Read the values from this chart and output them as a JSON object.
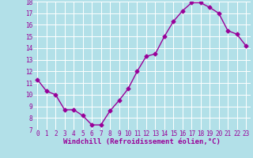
{
  "x": [
    0,
    1,
    2,
    3,
    4,
    5,
    6,
    7,
    8,
    9,
    10,
    11,
    12,
    13,
    14,
    15,
    16,
    17,
    18,
    19,
    20,
    21,
    22,
    23
  ],
  "y": [
    11.3,
    10.3,
    10.0,
    8.7,
    8.7,
    8.2,
    7.4,
    7.4,
    8.6,
    9.5,
    10.5,
    12.0,
    13.3,
    13.5,
    15.0,
    16.3,
    17.2,
    17.9,
    17.9,
    17.5,
    17.0,
    15.5,
    15.2,
    14.2
  ],
  "xlabel": "Windchill (Refroidissement éolien,°C)",
  "ylim": [
    7,
    18
  ],
  "yticks": [
    7,
    8,
    9,
    10,
    11,
    12,
    13,
    14,
    15,
    16,
    17,
    18
  ],
  "xticks": [
    0,
    1,
    2,
    3,
    4,
    5,
    6,
    7,
    8,
    9,
    10,
    11,
    12,
    13,
    14,
    15,
    16,
    17,
    18,
    19,
    20,
    21,
    22,
    23
  ],
  "line_color": "#990099",
  "marker": "D",
  "marker_size": 2.5,
  "background_color": "#b2e0e8",
  "grid_color": "#ffffff",
  "xlabel_fontsize": 6.5,
  "tick_fontsize": 5.5,
  "line_width": 1.0
}
